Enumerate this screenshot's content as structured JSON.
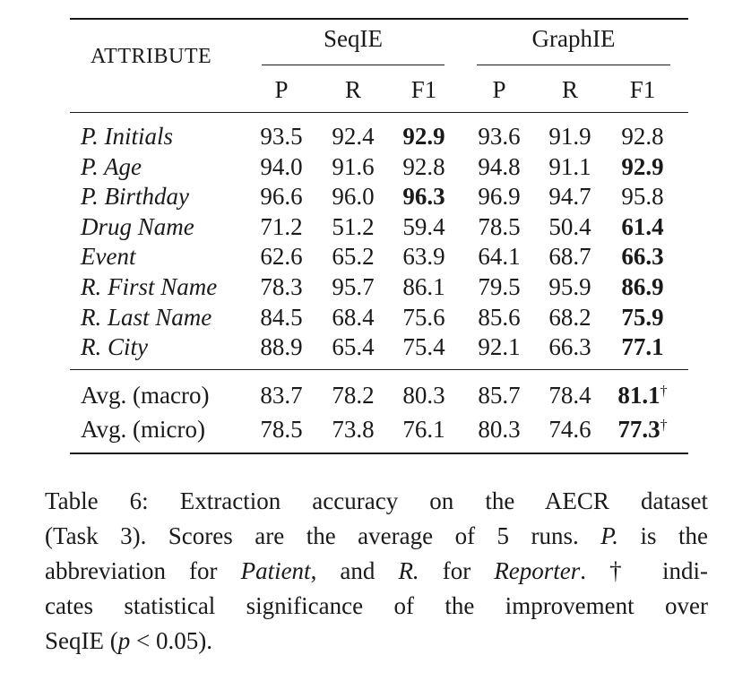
{
  "table": {
    "attribute_header": "ATTRIBUTE",
    "groups": [
      {
        "name": "SeqIE",
        "columns": [
          "P",
          "R",
          "F1"
        ]
      },
      {
        "name": "GraphIE",
        "columns": [
          "P",
          "R",
          "F1"
        ]
      }
    ],
    "rows": [
      {
        "attribute": "P. Initials",
        "values": [
          "93.5",
          "92.4",
          "92.9",
          "93.6",
          "91.9",
          "92.8"
        ],
        "bold_index": 2
      },
      {
        "attribute": "P. Age",
        "values": [
          "94.0",
          "91.6",
          "92.8",
          "94.8",
          "91.1",
          "92.9"
        ],
        "bold_index": 5
      },
      {
        "attribute": "P. Birthday",
        "values": [
          "96.6",
          "96.0",
          "96.3",
          "96.9",
          "94.7",
          "95.8"
        ],
        "bold_index": 2
      },
      {
        "attribute": "Drug Name",
        "values": [
          "71.2",
          "51.2",
          "59.4",
          "78.5",
          "50.4",
          "61.4"
        ],
        "bold_index": 5
      },
      {
        "attribute": "Event",
        "values": [
          "62.6",
          "65.2",
          "63.9",
          "64.1",
          "68.7",
          "66.3"
        ],
        "bold_index": 5
      },
      {
        "attribute": "R. First Name",
        "values": [
          "78.3",
          "95.7",
          "86.1",
          "79.5",
          "95.9",
          "86.9"
        ],
        "bold_index": 5
      },
      {
        "attribute": "R. Last Name",
        "values": [
          "84.5",
          "68.4",
          "75.6",
          "85.6",
          "68.2",
          "75.9"
        ],
        "bold_index": 5
      },
      {
        "attribute": "R. City",
        "values": [
          "88.9",
          "65.4",
          "75.4",
          "92.1",
          "66.3",
          "77.1"
        ],
        "bold_index": 5
      }
    ],
    "averages": [
      {
        "label": "Avg. (macro)",
        "values": [
          "83.7",
          "78.2",
          "80.3",
          "85.7",
          "78.4",
          "81.1"
        ],
        "bold_index": 5,
        "dagger": "†"
      },
      {
        "label": "Avg. (micro)",
        "values": [
          "78.5",
          "73.8",
          "76.1",
          "80.3",
          "74.6",
          "77.3"
        ],
        "bold_index": 5,
        "dagger": "†"
      }
    ]
  },
  "caption": {
    "lines": [
      [
        {
          "t": "Table 6:  Extraction accuracy on the AECR dataset"
        }
      ],
      [
        {
          "t": "(Task 3).  Scores are the average of 5 runs.  "
        },
        {
          "t": "P.",
          "i": true
        },
        {
          "t": " is the"
        }
      ],
      [
        {
          "t": "abbreviation for "
        },
        {
          "t": "Patient",
          "i": true
        },
        {
          "t": ", and "
        },
        {
          "t": "R.",
          "i": true
        },
        {
          "t": " for "
        },
        {
          "t": "Reporter",
          "i": true
        },
        {
          "t": ".  † indi-"
        }
      ],
      [
        {
          "t": "cates statistical significance of the improvement over"
        }
      ],
      [
        {
          "t": "SeqIE ("
        },
        {
          "t": "p",
          "i": true
        },
        {
          "t": " < 0.05)."
        }
      ]
    ]
  }
}
